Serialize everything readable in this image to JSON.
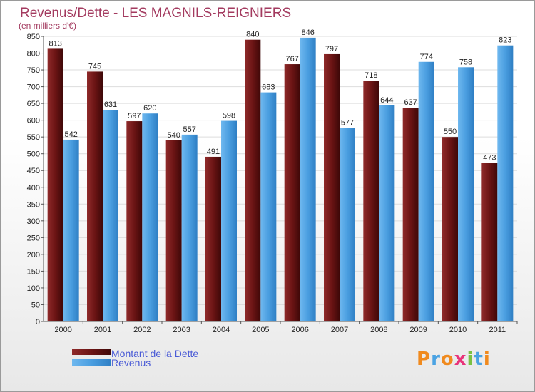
{
  "chart_data": {
    "type": "bar",
    "title": "Revenus/Dette - LES MAGNILS-REIGNIERS",
    "subtitle": "(en milliers d'€)",
    "categories": [
      "2000",
      "2001",
      "2002",
      "2003",
      "2004",
      "2005",
      "2006",
      "2007",
      "2008",
      "2009",
      "2010",
      "2011"
    ],
    "series": [
      {
        "name": "Montant de la Dette",
        "color": "#6b1414",
        "values": [
          813,
          745,
          597,
          540,
          491,
          840,
          767,
          797,
          718,
          637,
          550,
          473
        ]
      },
      {
        "name": "Revenus",
        "color": "#4a9ee0",
        "values": [
          542,
          631,
          620,
          557,
          598,
          683,
          846,
          577,
          644,
          774,
          758,
          823
        ]
      }
    ],
    "ylim": [
      0,
      850
    ],
    "ytick_step": 50,
    "grid": true,
    "legend_position": "bottom-left"
  },
  "logo": {
    "text": "Proxiti",
    "colors": [
      "#f08a1e",
      "#4ba3e3",
      "#f08a1e",
      "#e8347a",
      "#7ac143",
      "#4ba3e3",
      "#f08a1e"
    ]
  }
}
